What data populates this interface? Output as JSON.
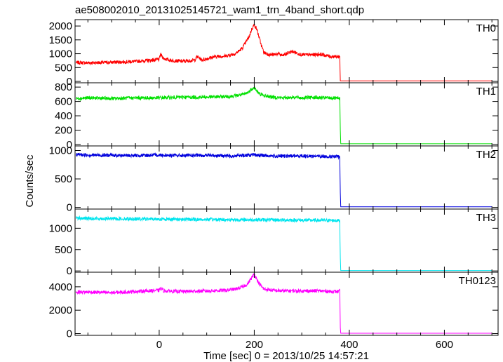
{
  "title": "ae508002010_20131025145721_wam1_trn_4band_short.qdp",
  "ylabel": "Counts/sec",
  "xlabel": "Time [sec] 0 = 2013/10/25 14:57:21",
  "chart_data": [
    {
      "type": "line",
      "name": "TH0",
      "color": "#ff0000",
      "xlim": [
        -177,
        713
      ],
      "ylim": [
        -50,
        2230
      ],
      "yticks": [
        0,
        500,
        1000,
        1500,
        2000
      ],
      "xticks": [
        0,
        200,
        400,
        600
      ],
      "x": [
        -175,
        -150,
        -100,
        -50,
        0,
        3,
        10,
        25,
        50,
        75,
        80,
        90,
        100,
        120,
        140,
        160,
        175,
        185,
        190,
        195,
        200,
        205,
        210,
        215,
        220,
        230,
        240,
        250,
        260,
        270,
        280,
        300,
        320,
        340,
        360,
        377,
        380,
        381,
        382,
        400,
        500,
        600,
        700
      ],
      "y": [
        680,
        670,
        690,
        720,
        790,
        980,
        820,
        760,
        720,
        770,
        900,
        770,
        820,
        900,
        920,
        1000,
        1200,
        1500,
        1650,
        1900,
        2050,
        1900,
        1600,
        1300,
        1050,
        970,
        960,
        1000,
        930,
        1020,
        1080,
        960,
        960,
        980,
        900,
        890,
        900,
        20,
        20,
        20,
        20,
        20,
        20
      ]
    },
    {
      "type": "line",
      "name": "TH1",
      "color": "#00e000",
      "xlim": [
        -177,
        713
      ],
      "ylim": [
        -20,
        860
      ],
      "yticks": [
        0,
        200,
        400,
        600,
        800
      ],
      "xticks": [
        0,
        200,
        400,
        600
      ],
      "x": [
        -175,
        -150,
        -100,
        -50,
        0,
        50,
        100,
        150,
        180,
        190,
        195,
        200,
        205,
        210,
        220,
        240,
        260,
        280,
        300,
        320,
        340,
        360,
        377,
        380,
        381,
        382,
        400,
        500,
        600,
        700
      ],
      "y": [
        640,
        650,
        640,
        650,
        650,
        660,
        660,
        670,
        700,
        740,
        780,
        790,
        750,
        710,
        680,
        660,
        650,
        660,
        650,
        660,
        650,
        650,
        640,
        650,
        200,
        10,
        10,
        10,
        10,
        10
      ]
    },
    {
      "type": "line",
      "name": "TH2",
      "color": "#0000dd",
      "xlim": [
        -177,
        713
      ],
      "ylim": [
        -30,
        1080
      ],
      "yticks": [
        0,
        500,
        1000
      ],
      "xticks": [
        0,
        200,
        400,
        600
      ],
      "x": [
        -175,
        -150,
        -100,
        -50,
        0,
        50,
        100,
        150,
        200,
        250,
        300,
        350,
        377,
        380,
        381,
        382,
        400,
        500,
        600,
        700
      ],
      "y": [
        930,
        920,
        915,
        910,
        920,
        910,
        915,
        905,
        920,
        900,
        905,
        895,
        890,
        880,
        250,
        10,
        10,
        10,
        10,
        10
      ]
    },
    {
      "type": "line",
      "name": "TH3",
      "color": "#00e5ee",
      "xlim": [
        -177,
        713
      ],
      "ylim": [
        -30,
        1450
      ],
      "yticks": [
        0,
        500,
        1000
      ],
      "xticks": [
        0,
        200,
        400,
        600
      ],
      "x": [
        -175,
        -150,
        -100,
        -50,
        0,
        50,
        100,
        150,
        200,
        250,
        300,
        350,
        377,
        380,
        381,
        382,
        400,
        500,
        600,
        700
      ],
      "y": [
        1240,
        1230,
        1225,
        1220,
        1215,
        1210,
        1205,
        1200,
        1200,
        1195,
        1190,
        1185,
        1180,
        1170,
        300,
        10,
        10,
        10,
        10,
        10
      ]
    },
    {
      "type": "line",
      "name": "TH0123",
      "color": "#ff00ff",
      "xlim": [
        -177,
        713
      ],
      "ylim": [
        -150,
        5250
      ],
      "yticks": [
        0,
        2000,
        4000
      ],
      "xticks": [
        0,
        200,
        400,
        600
      ],
      "x": [
        -175,
        -150,
        -100,
        -50,
        0,
        3,
        10,
        50,
        100,
        140,
        160,
        175,
        185,
        190,
        195,
        200,
        205,
        210,
        220,
        240,
        260,
        300,
        340,
        360,
        377,
        380,
        381,
        382,
        400,
        500,
        600,
        700
      ],
      "y": [
        3550,
        3550,
        3500,
        3600,
        3700,
        3900,
        3650,
        3600,
        3650,
        3700,
        3800,
        4000,
        4200,
        4500,
        4800,
        5100,
        4700,
        4300,
        3800,
        3700,
        3650,
        3650,
        3650,
        3600,
        3600,
        3650,
        500,
        30,
        30,
        30,
        30,
        30
      ]
    }
  ]
}
